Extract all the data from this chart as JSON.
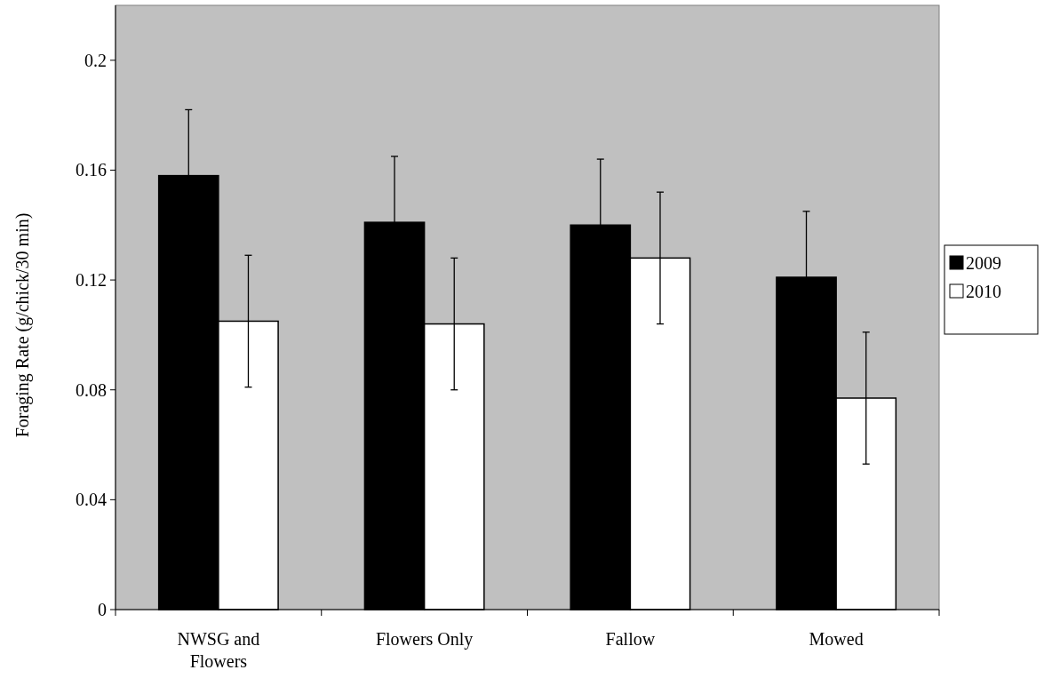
{
  "chart_data": {
    "type": "bar",
    "ylabel": "Foraging Rate (g/chick/30 min)",
    "categories": [
      "NWSG and Flowers",
      "Flowers Only",
      "Fallow",
      "Mowed"
    ],
    "series": [
      {
        "name": "2009",
        "color": "#000000",
        "values": [
          0.158,
          0.141,
          0.14,
          0.121
        ],
        "errors": [
          0.024,
          0.024,
          0.024,
          0.024
        ]
      },
      {
        "name": "2010",
        "color": "#ffffff",
        "values": [
          0.105,
          0.104,
          0.128,
          0.077
        ],
        "errors": [
          0.024,
          0.024,
          0.024,
          0.024
        ]
      }
    ],
    "ylim": [
      0,
      0.22
    ],
    "yticks": [
      0,
      0.04,
      0.08,
      0.12,
      0.16,
      0.2
    ],
    "grid": false,
    "legend": "right"
  }
}
